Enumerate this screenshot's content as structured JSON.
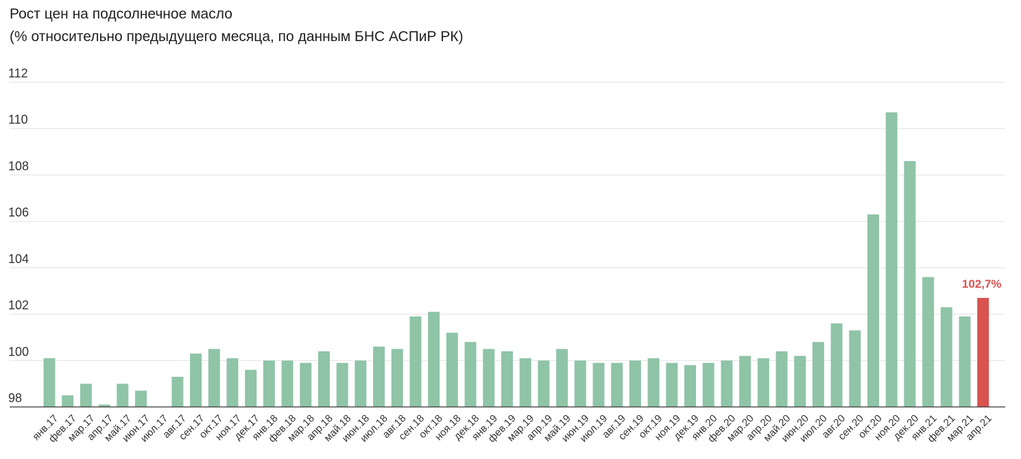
{
  "title": "Рост цен на подсолнечное масло",
  "subtitle": "(% относительно предыдущего месяца, по данным БНС АСПиР РК)",
  "chart_data": {
    "type": "bar",
    "title": "Рост цен на подсолнечное масло",
    "subtitle": "(% относительно предыдущего месяца, по данным БНС АСПиР РК)",
    "xlabel": "",
    "ylabel": "",
    "ylim": [
      98,
      112
    ],
    "yticks": [
      98,
      100,
      102,
      104,
      106,
      108,
      110,
      112
    ],
    "grid": true,
    "categories": [
      "янв.17",
      "фев.17",
      "мар.17",
      "апр.17",
      "май.17",
      "июн.17",
      "июл.17",
      "авг.17",
      "сен.17",
      "окт.17",
      "ноя.17",
      "дек.17",
      "янв.18",
      "фев.18",
      "мар.18",
      "апр.18",
      "май.18",
      "июн.18",
      "июл.18",
      "авг.18",
      "сен.18",
      "окт.18",
      "ноя.18",
      "дек.18",
      "янв.19",
      "фев.19",
      "мар.19",
      "апр.19",
      "май.19",
      "июн.19",
      "июл.19",
      "авг.19",
      "сен.19",
      "окт.19",
      "ноя.19",
      "дек.19",
      "янв.20",
      "фев.20",
      "мар.20",
      "апр.20",
      "май.20",
      "июн.20",
      "июл.20",
      "авг.20",
      "сен.20",
      "окт.20",
      "ноя.20",
      "дек.20",
      "янв.21",
      "фев.21",
      "мар.21",
      "апр.21"
    ],
    "values": [
      100.1,
      98.5,
      99.0,
      98.1,
      99.0,
      98.7,
      97.9,
      99.3,
      100.3,
      100.5,
      100.1,
      99.6,
      100.0,
      100.0,
      99.9,
      100.4,
      99.9,
      100.0,
      100.6,
      100.5,
      101.9,
      102.1,
      101.2,
      100.8,
      100.5,
      100.4,
      100.1,
      100.0,
      100.5,
      100.0,
      99.9,
      99.9,
      100.0,
      100.1,
      99.9,
      99.8,
      99.9,
      100.0,
      100.2,
      100.1,
      100.4,
      100.2,
      100.8,
      101.6,
      101.3,
      106.3,
      110.7,
      108.6,
      103.6,
      102.3,
      101.9,
      102.7
    ],
    "colors": {
      "bar": "#8fc4a7",
      "highlight": "#d9534f"
    },
    "highlight_index": 51,
    "annotation": "102,7%"
  }
}
